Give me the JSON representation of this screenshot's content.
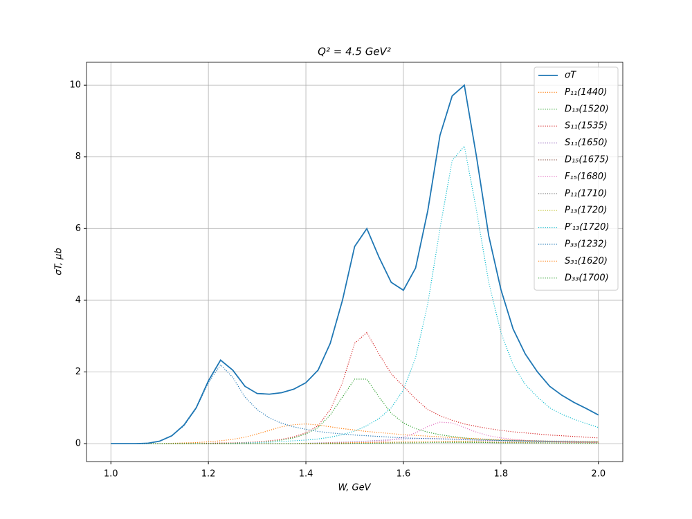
{
  "chart_data": {
    "type": "line",
    "title": "Q² = 4.5 GeV²",
    "x_label": "W, GeV",
    "y_label": "σT, μb",
    "x": [
      1,
      1.025,
      1.05,
      1.075,
      1.1,
      1.125,
      1.15,
      1.175,
      1.2,
      1.225,
      1.25,
      1.275,
      1.3,
      1.325,
      1.35,
      1.375,
      1.4,
      1.425,
      1.45,
      1.475,
      1.5,
      1.525,
      1.55,
      1.575,
      1.6,
      1.625,
      1.65,
      1.675,
      1.7,
      1.725,
      1.75,
      1.775,
      1.8,
      1.825,
      1.85,
      1.875,
      1.9,
      1.925,
      1.95,
      1.975,
      2
    ],
    "xlim": [
      0.95,
      2.05
    ],
    "ylim": [
      -0.5,
      10.64
    ],
    "xticks": [
      {
        "value": 1,
        "label": "1.0"
      },
      1.2,
      1.4,
      1.6,
      1.8,
      {
        "value": 2,
        "label": "2.0"
      }
    ],
    "yticks": [
      0,
      2,
      4,
      6,
      8,
      10
    ],
    "grid": true,
    "legend": "upper right",
    "series": [
      {
        "name": "σT",
        "color": "#1f77b4",
        "linestyle": "solid",
        "values": [
          0,
          0,
          0,
          0.01,
          0.07,
          0.22,
          0.52,
          1.0,
          1.75,
          2.33,
          2.05,
          1.6,
          1.4,
          1.38,
          1.42,
          1.52,
          1.7,
          2.05,
          2.8,
          4.0,
          5.5,
          6.0,
          5.2,
          4.5,
          4.28,
          4.9,
          6.5,
          8.6,
          9.7,
          10.0,
          8.0,
          5.8,
          4.3,
          3.2,
          2.5,
          2.0,
          1.6,
          1.35,
          1.15,
          0.98,
          0.8
        ]
      },
      {
        "name": "P₁₁(1440)",
        "color": "#ff7f0e",
        "linestyle": "dotted",
        "values": [
          0,
          0,
          0,
          0,
          0,
          0.01,
          0.02,
          0.03,
          0.05,
          0.08,
          0.12,
          0.18,
          0.27,
          0.37,
          0.47,
          0.53,
          0.55,
          0.52,
          0.47,
          0.42,
          0.38,
          0.34,
          0.31,
          0.28,
          0.25,
          0.23,
          0.21,
          0.19,
          0.17,
          0.15,
          0.14,
          0.12,
          0.11,
          0.1,
          0.09,
          0.08,
          0.07,
          0.06,
          0.06,
          0.05,
          0.05
        ]
      },
      {
        "name": "D₁₃(1520)",
        "color": "#2ca02c",
        "linestyle": "dotted",
        "values": [
          0,
          0,
          0,
          0,
          0,
          0,
          0,
          0,
          0,
          0.01,
          0.02,
          0.03,
          0.04,
          0.06,
          0.1,
          0.16,
          0.27,
          0.45,
          0.8,
          1.3,
          1.8,
          1.8,
          1.3,
          0.85,
          0.58,
          0.42,
          0.32,
          0.25,
          0.2,
          0.16,
          0.13,
          0.11,
          0.09,
          0.08,
          0.07,
          0.06,
          0.05,
          0.05,
          0.04,
          0.04,
          0.04
        ]
      },
      {
        "name": "S₁₁(1535)",
        "color": "#d62728",
        "linestyle": "dotted",
        "values": [
          0,
          0,
          0,
          0,
          0,
          0,
          0,
          0,
          0.01,
          0.02,
          0.02,
          0.03,
          0.05,
          0.08,
          0.12,
          0.19,
          0.3,
          0.5,
          0.95,
          1.7,
          2.8,
          3.1,
          2.5,
          1.95,
          1.6,
          1.25,
          0.95,
          0.78,
          0.65,
          0.55,
          0.48,
          0.42,
          0.37,
          0.33,
          0.3,
          0.27,
          0.24,
          0.22,
          0.2,
          0.18,
          0.16
        ]
      },
      {
        "name": "S₁₁(1650)",
        "color": "#9467bd",
        "linestyle": "dotted",
        "values": [
          0,
          0,
          0,
          0,
          0,
          0,
          0,
          0,
          0,
          0,
          0,
          0,
          0,
          0,
          0,
          0,
          0.01,
          0.02,
          0.03,
          0.04,
          0.05,
          0.07,
          0.09,
          0.11,
          0.13,
          0.14,
          0.15,
          0.14,
          0.13,
          0.11,
          0.1,
          0.09,
          0.08,
          0.07,
          0.06,
          0.05,
          0.05,
          0.04,
          0.04,
          0.03,
          0.03
        ]
      },
      {
        "name": "D₁₅(1675)",
        "color": "#8c564b",
        "linestyle": "dotted",
        "values": [
          0,
          0,
          0,
          0,
          0,
          0,
          0,
          0,
          0,
          0,
          0,
          0,
          0,
          0,
          0,
          0,
          0,
          0,
          0,
          0,
          0.01,
          0.01,
          0.02,
          0.02,
          0.03,
          0.03,
          0.04,
          0.04,
          0.04,
          0.04,
          0.04,
          0.03,
          0.03,
          0.03,
          0.02,
          0.02,
          0.02,
          0.02,
          0.02,
          0.01,
          0.01
        ]
      },
      {
        "name": "F₁₅(1680)",
        "color": "#e377c2",
        "linestyle": "dotted",
        "values": [
          0,
          0,
          0,
          0,
          0,
          0,
          0,
          0,
          0,
          0,
          0,
          0,
          0,
          0,
          0,
          0,
          0,
          0,
          0,
          0,
          0,
          0.03,
          0.05,
          0.1,
          0.18,
          0.3,
          0.48,
          0.6,
          0.58,
          0.45,
          0.32,
          0.22,
          0.16,
          0.12,
          0.09,
          0.07,
          0.06,
          0.05,
          0.04,
          0.04,
          0.03
        ]
      },
      {
        "name": "P₁₁(1710)",
        "color": "#7f7f7f",
        "linestyle": "dotted",
        "values": [
          0,
          0,
          0,
          0,
          0,
          0,
          0,
          0,
          0,
          0,
          0,
          0,
          0,
          0,
          0,
          0,
          0,
          0,
          0,
          0,
          0.01,
          0.01,
          0.02,
          0.02,
          0.03,
          0.04,
          0.05,
          0.06,
          0.07,
          0.07,
          0.06,
          0.05,
          0.04,
          0.04,
          0.03,
          0.03,
          0.02,
          0.02,
          0.02,
          0.02,
          0.01
        ]
      },
      {
        "name": "P₁₃(1720)",
        "color": "#bcbd22",
        "linestyle": "dotted",
        "values": [
          0,
          0,
          0,
          0,
          0,
          0,
          0,
          0,
          0,
          0,
          0,
          0,
          0,
          0,
          0,
          0,
          0,
          0,
          0,
          0,
          0.01,
          0.01,
          0.01,
          0.02,
          0.02,
          0.03,
          0.04,
          0.05,
          0.06,
          0.06,
          0.05,
          0.04,
          0.03,
          0.03,
          0.02,
          0.02,
          0.02,
          0.01,
          0.01,
          0.01,
          0.01
        ]
      },
      {
        "name": "P′₁₃(1720)",
        "color": "#17becf",
        "linestyle": "dotted",
        "values": [
          0,
          0,
          0,
          0,
          0,
          0,
          0,
          0,
          0,
          0,
          0.01,
          0.02,
          0.03,
          0.04,
          0.06,
          0.08,
          0.1,
          0.13,
          0.18,
          0.25,
          0.35,
          0.5,
          0.7,
          1.0,
          1.5,
          2.4,
          3.9,
          6.0,
          7.9,
          8.3,
          6.5,
          4.5,
          3.1,
          2.2,
          1.65,
          1.3,
          1.0,
          0.82,
          0.68,
          0.56,
          0.45
        ]
      },
      {
        "name": "P₃₃(1232)",
        "color": "#1f77b4",
        "linestyle": "dotted",
        "values": [
          0,
          0,
          0,
          0.01,
          0.07,
          0.22,
          0.5,
          0.98,
          1.7,
          2.2,
          1.85,
          1.3,
          0.95,
          0.72,
          0.57,
          0.47,
          0.4,
          0.34,
          0.3,
          0.27,
          0.24,
          0.22,
          0.2,
          0.18,
          0.16,
          0.15,
          0.14,
          0.13,
          0.12,
          0.11,
          0.1,
          0.1,
          0.09,
          0.09,
          0.08,
          0.08,
          0.07,
          0.07,
          0.07,
          0.06,
          0.06
        ]
      },
      {
        "name": "S₃₁(1620)",
        "color": "#ff7f0e",
        "linestyle": "dotted",
        "values": [
          0,
          0,
          0,
          0,
          0,
          0,
          0,
          0,
          0,
          0,
          0,
          0,
          0,
          0,
          0,
          0,
          0.01,
          0.01,
          0.02,
          0.02,
          0.03,
          0.03,
          0.04,
          0.04,
          0.05,
          0.05,
          0.05,
          0.05,
          0.05,
          0.04,
          0.04,
          0.04,
          0.03,
          0.03,
          0.03,
          0.02,
          0.02,
          0.02,
          0.02,
          0.02,
          0.02
        ]
      },
      {
        "name": "D₃₃(1700)",
        "color": "#2ca02c",
        "linestyle": "dotted",
        "values": [
          0,
          0,
          0,
          0,
          0,
          0,
          0,
          0,
          0,
          0,
          0,
          0,
          0,
          0,
          0,
          0,
          0,
          0,
          0,
          0,
          0.01,
          0.01,
          0.01,
          0.02,
          0.02,
          0.02,
          0.03,
          0.03,
          0.03,
          0.03,
          0.03,
          0.03,
          0.02,
          0.02,
          0.02,
          0.02,
          0.02,
          0.01,
          0.01,
          0.01,
          0.01
        ]
      }
    ]
  }
}
